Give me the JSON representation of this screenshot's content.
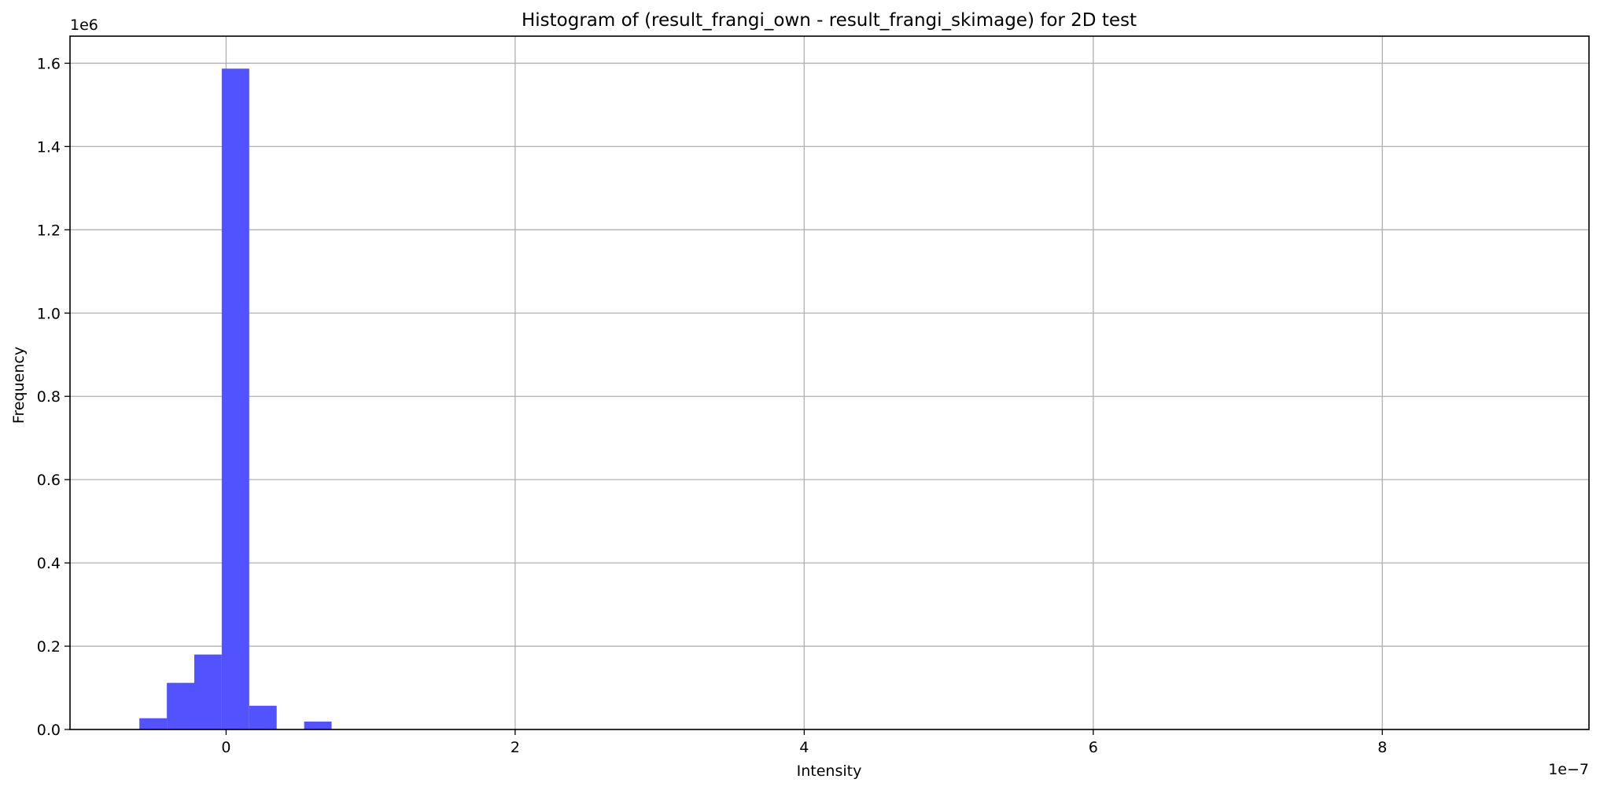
{
  "chart_data": {
    "type": "bar",
    "title": "Histogram of (result_frangi_own - result_frangi_skimage) for 2D test",
    "xlabel": "Intensity",
    "ylabel": "Frequency",
    "x_offset_label": "1e−7",
    "y_offset_label": "1e6",
    "xlim": [
      -1.08,
      9.43
    ],
    "ylim": [
      0,
      1.665
    ],
    "grid": true,
    "bar_color": "#4f4ffe",
    "x_ticks": [
      {
        "value": 0,
        "label": "0"
      },
      {
        "value": 2,
        "label": "2"
      },
      {
        "value": 4,
        "label": "4"
      },
      {
        "value": 6,
        "label": "6"
      },
      {
        "value": 8,
        "label": "8"
      }
    ],
    "y_ticks": [
      {
        "value": 0.0,
        "label": "0.0"
      },
      {
        "value": 0.2,
        "label": "0.2"
      },
      {
        "value": 0.4,
        "label": "0.4"
      },
      {
        "value": 0.6,
        "label": "0.6"
      },
      {
        "value": 0.8,
        "label": "0.8"
      },
      {
        "value": 1.0,
        "label": "1.0"
      },
      {
        "value": 1.2,
        "label": "1.2"
      },
      {
        "value": 1.4,
        "label": "1.4"
      },
      {
        "value": 1.6,
        "label": "1.6"
      }
    ],
    "bins": [
      {
        "x0": -0.6,
        "x1": -0.41,
        "value": 0.027
      },
      {
        "x0": -0.41,
        "x1": -0.22,
        "value": 0.112
      },
      {
        "x0": -0.22,
        "x1": -0.03,
        "value": 0.18
      },
      {
        "x0": -0.03,
        "x1": 0.16,
        "value": 1.587
      },
      {
        "x0": 0.16,
        "x1": 0.35,
        "value": 0.057
      },
      {
        "x0": 0.54,
        "x1": 0.73,
        "value": 0.019
      }
    ]
  }
}
